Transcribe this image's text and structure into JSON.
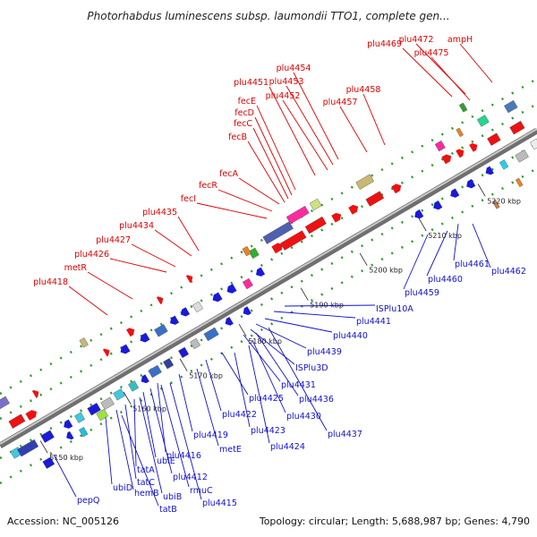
{
  "title": "Photorhabdus luminescens subsp. laumondii TTO1, complete gen...",
  "footer": {
    "accession": "Accession: NC_005126",
    "topology": "Topology: circular; Length: 5,688,987 bp; Genes: 4,790"
  },
  "ticks": [
    {
      "label": "5150 kbp",
      "t": 0.06
    },
    {
      "label": "5160 kbp",
      "t": 0.215
    },
    {
      "label": "5170 kbp",
      "t": 0.32
    },
    {
      "label": "5180 kbp",
      "t": 0.43
    },
    {
      "label": "5190 kbp",
      "t": 0.545
    },
    {
      "label": "5200 kbp",
      "t": 0.655
    },
    {
      "label": "5210 kbp",
      "t": 0.765
    },
    {
      "label": "5220 kbp",
      "t": 0.875
    }
  ],
  "genes_top": [
    "plu4469",
    "plu4472",
    "plu4475",
    "ampH",
    "plu4454",
    "plu4453",
    "plu4451",
    "plu4452",
    "plu4458",
    "plu4457",
    "fecE",
    "fecD",
    "fecC",
    "fecB",
    "fecA",
    "fecR",
    "fecI",
    "plu4435",
    "plu4434",
    "plu4427",
    "plu4426",
    "metR",
    "plu4418"
  ],
  "genes_bottom": [
    "ISPlu10A",
    "plu4441",
    "plu4440",
    "plu4439",
    "ISPlu3D",
    "plu4431",
    "plu4436",
    "plu4425",
    "plu4430",
    "plu4422",
    "plu4423",
    "plu4437",
    "plu4419",
    "plu4424",
    "metE",
    "plu4416",
    "ubiE",
    "tatA",
    "plu4412",
    "tatC",
    "ubiD",
    "rmuC",
    "hemB",
    "ubiB",
    "plu4415",
    "tatB",
    "pepQ",
    "plu4459",
    "plu4460",
    "plu4461",
    "plu4462"
  ],
  "colors": {
    "forward": "#ee1111",
    "reverse": "#1a1ad8",
    "backbone": "#8a8a8a"
  }
}
